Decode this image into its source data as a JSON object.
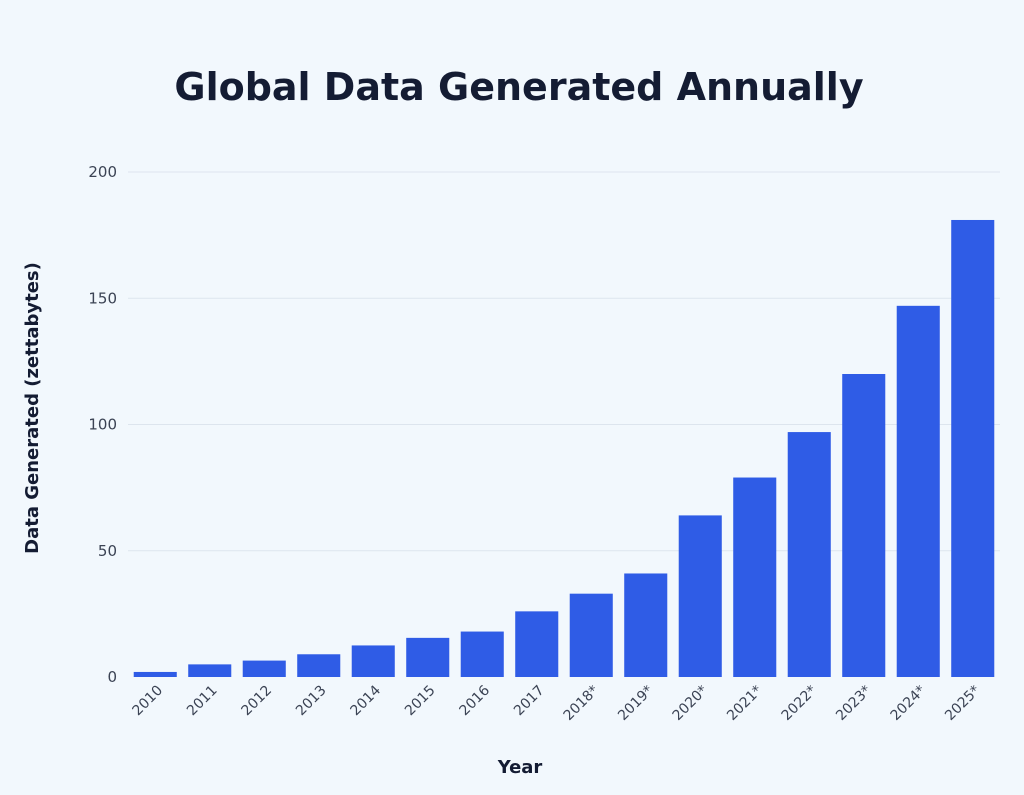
{
  "chart_data": {
    "type": "bar",
    "title": "Global Data Generated Annually",
    "xlabel": "Year",
    "ylabel": "Data Generated (zettabytes)",
    "categories": [
      "2010",
      "2011",
      "2012",
      "2013",
      "2014",
      "2015",
      "2016",
      "2017",
      "2018*",
      "2019*",
      "2020*",
      "2021*",
      "2022*",
      "2023*",
      "2024*",
      "2025*"
    ],
    "values": [
      2,
      5,
      6.5,
      9,
      12.5,
      15.5,
      18,
      26,
      33,
      41,
      64,
      79,
      97,
      120,
      147,
      181
    ],
    "ylim": [
      0,
      200
    ],
    "yticks": [
      0,
      50,
      100,
      150,
      200
    ],
    "grid": true,
    "bar_color": "#2f5ce6"
  }
}
